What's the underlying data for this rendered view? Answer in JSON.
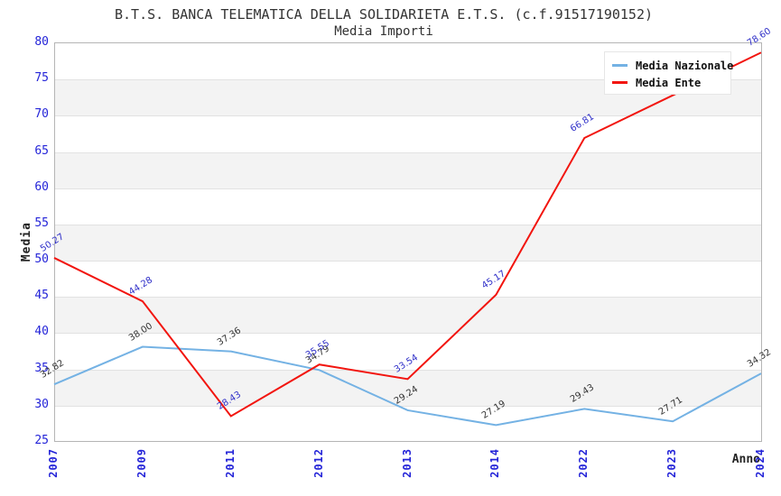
{
  "chart_data": {
    "type": "line",
    "title": "B.T.S. BANCA TELEMATICA DELLA SOLIDARIETA E.T.S. (c.f.91517190152)",
    "subtitle": "Media Importi",
    "xlabel": "Anno",
    "ylabel": "Media",
    "categories": [
      "2007",
      "2009",
      "2011",
      "2012",
      "2013",
      "2014",
      "2022",
      "2023",
      "2024"
    ],
    "series": [
      {
        "name": "Media Nazionale",
        "color": "#74b2e4",
        "label_color": "#333333",
        "values": [
          32.82,
          38.0,
          37.36,
          34.79,
          29.24,
          27.19,
          29.43,
          27.71,
          34.32
        ],
        "point_labels": [
          "32.82",
          "38.00",
          "37.36",
          "34.79",
          "29.24",
          "27.19",
          "29.43",
          "27.71",
          "34.32"
        ]
      },
      {
        "name": "Media Ente",
        "color": "#f2150f",
        "label_color": "#2e2ec8",
        "values": [
          50.27,
          44.28,
          28.43,
          35.55,
          33.54,
          45.17,
          66.81,
          72.7,
          78.6
        ],
        "point_labels": [
          "50.27",
          "44.28",
          "28.43",
          "35.55",
          "33.54",
          "45.17",
          "66.81",
          "",
          "78.60"
        ]
      }
    ],
    "ylim": [
      25,
      80
    ],
    "ytick_step": 5,
    "tick_label_color": "#2424d8",
    "grid": "alternating-horizontal-bands",
    "legend_position": "top-right"
  },
  "legend": {
    "items": [
      {
        "label": "Media Nazionale",
        "color": "#74b2e4"
      },
      {
        "label": "Media Ente",
        "color": "#f2150f"
      }
    ]
  }
}
